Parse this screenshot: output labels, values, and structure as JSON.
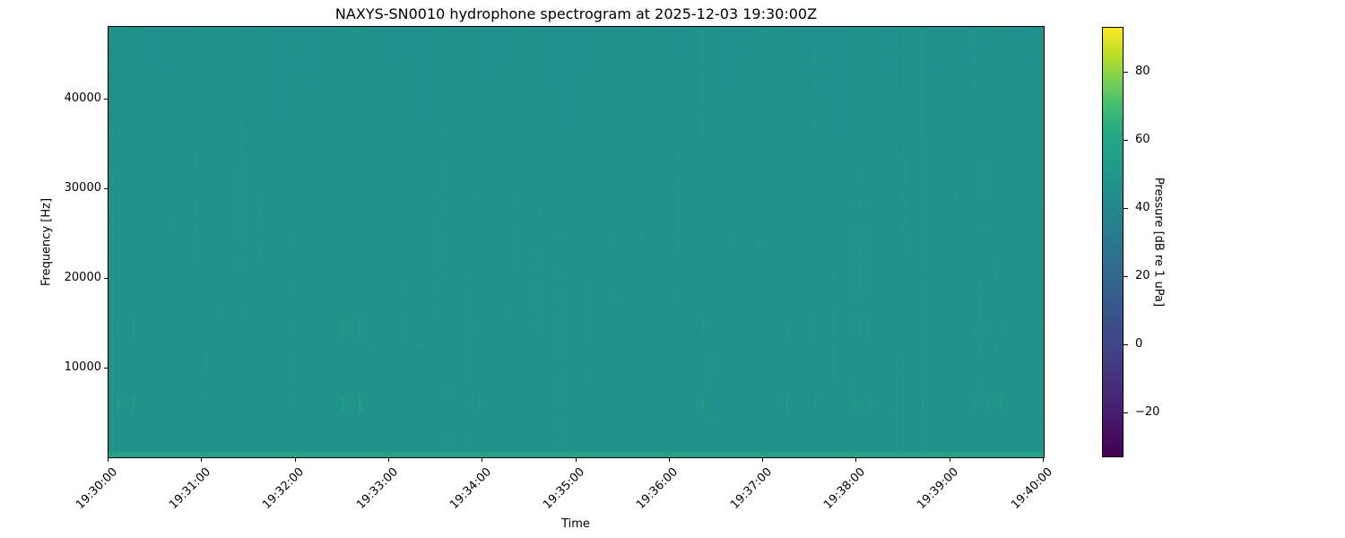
{
  "chart_data": {
    "type": "heatmap",
    "title": "NAXYS-SN0010 hydrophone spectrogram at 2025-12-03 19:30:00Z",
    "xlabel": "Time",
    "ylabel": "Frequency [Hz]",
    "colorbar_label": "Pressure [dB re 1 uPa]",
    "colormap": "viridis",
    "xlim": [
      "19:30:00",
      "19:40:00"
    ],
    "ylim": [
      0,
      48000
    ],
    "clim": [
      -33,
      93
    ],
    "x_ticks": [
      "19:30:00",
      "19:31:00",
      "19:32:00",
      "19:33:00",
      "19:34:00",
      "19:35:00",
      "19:36:00",
      "19:37:00",
      "19:38:00",
      "19:39:00",
      "19:40:00"
    ],
    "y_ticks": [
      10000,
      20000,
      30000,
      40000
    ],
    "y_tick_labels": [
      "10000",
      "20000",
      "30000",
      "40000"
    ],
    "colorbar_ticks": [
      -20,
      0,
      20,
      40,
      60,
      80
    ],
    "colorbar_tick_labels": [
      "−20",
      "0",
      "20",
      "40",
      "60",
      "80"
    ],
    "background_level_db": 47,
    "low_frequency_band": {
      "freq_max_hz": 500,
      "level_db": 58
    },
    "tonal_band": {
      "freq_hz": 12500,
      "level_db": 50
    },
    "transient_events": [
      {
        "time": "19:30:06",
        "level_db": 60
      },
      {
        "time": "19:30:16",
        "level_db": 62
      },
      {
        "time": "19:32:30",
        "level_db": 62
      },
      {
        "time": "19:32:41",
        "level_db": 64
      },
      {
        "time": "19:33:57",
        "level_db": 57
      },
      {
        "time": "19:36:21",
        "level_db": 62
      },
      {
        "time": "19:37:15",
        "level_db": 58
      },
      {
        "time": "19:37:33",
        "level_db": 56
      },
      {
        "time": "19:37:58",
        "level_db": 57
      },
      {
        "time": "19:38:08",
        "level_db": 58
      },
      {
        "time": "19:38:42",
        "level_db": 56
      },
      {
        "time": "19:39:15",
        "level_db": 56
      },
      {
        "time": "19:39:25",
        "level_db": 57
      },
      {
        "time": "19:39:32",
        "level_db": 59
      }
    ]
  }
}
